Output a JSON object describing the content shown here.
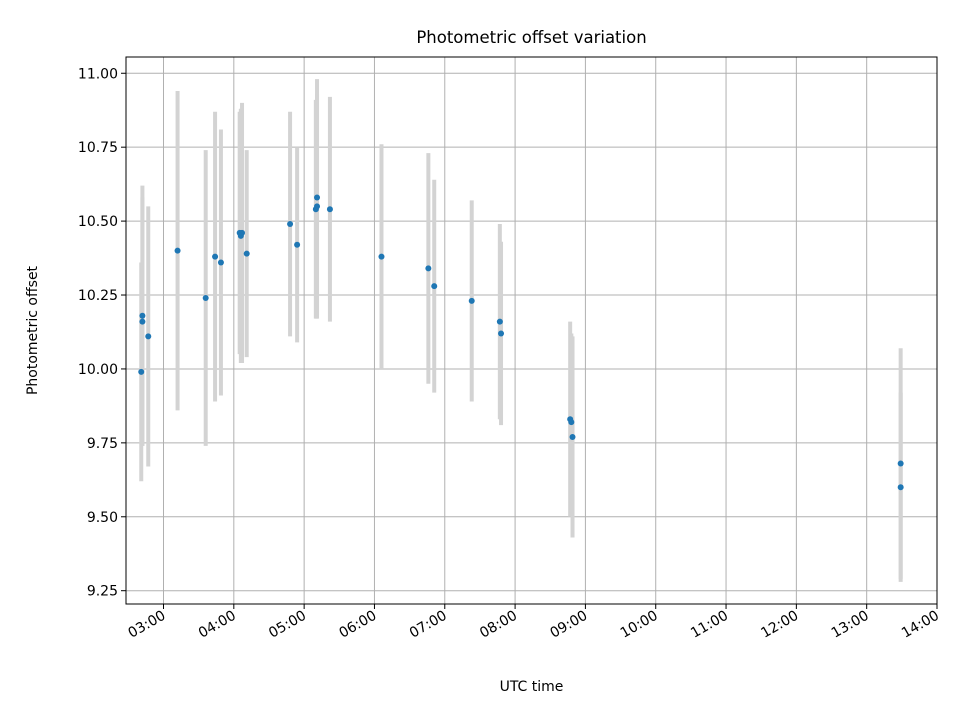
{
  "chart_data": {
    "type": "scatter",
    "title": "Photometric offset variation",
    "xlabel": "UTC time",
    "ylabel": "Photometric offset",
    "xlim": [
      "02:28",
      "14:00"
    ],
    "ylim": [
      9.205,
      11.055
    ],
    "grid": true,
    "x_ticks": [
      "03:00",
      "04:00",
      "05:00",
      "06:00",
      "07:00",
      "08:00",
      "09:00",
      "10:00",
      "11:00",
      "12:00",
      "13:00",
      "14:00"
    ],
    "y_ticks": [
      "9.25",
      "9.50",
      "9.75",
      "10.00",
      "10.25",
      "10.50",
      "10.75",
      "11.00"
    ],
    "series": [
      {
        "marker_color": "#1f77b4",
        "errorbar_color": "#d3d3d3",
        "points": [
          {
            "x": "02:41",
            "y": 9.99,
            "err": 0.37
          },
          {
            "x": "02:42",
            "y": 10.18,
            "err": 0.44
          },
          {
            "x": "02:42",
            "y": 10.16,
            "err": 0.42
          },
          {
            "x": "02:47",
            "y": 10.11,
            "err": 0.44
          },
          {
            "x": "03:12",
            "y": 10.4,
            "err": 0.54
          },
          {
            "x": "03:36",
            "y": 10.24,
            "err": 0.5
          },
          {
            "x": "03:44",
            "y": 10.38,
            "err": 0.49
          },
          {
            "x": "03:49",
            "y": 10.36,
            "err": 0.45
          },
          {
            "x": "04:05",
            "y": 10.46,
            "err": 0.41
          },
          {
            "x": "04:06",
            "y": 10.45,
            "err": 0.43
          },
          {
            "x": "04:07",
            "y": 10.46,
            "err": 0.44
          },
          {
            "x": "04:11",
            "y": 10.39,
            "err": 0.35
          },
          {
            "x": "04:48",
            "y": 10.49,
            "err": 0.38
          },
          {
            "x": "04:54",
            "y": 10.42,
            "err": 0.33
          },
          {
            "x": "05:10",
            "y": 10.54,
            "err": 0.37
          },
          {
            "x": "05:11",
            "y": 10.58,
            "err": 0.4
          },
          {
            "x": "05:11",
            "y": 10.55,
            "err": 0.38
          },
          {
            "x": "05:22",
            "y": 10.54,
            "err": 0.38
          },
          {
            "x": "06:06",
            "y": 10.38,
            "err": 0.38
          },
          {
            "x": "06:46",
            "y": 10.34,
            "err": 0.39
          },
          {
            "x": "06:51",
            "y": 10.28,
            "err": 0.36
          },
          {
            "x": "07:23",
            "y": 10.23,
            "err": 0.34
          },
          {
            "x": "07:47",
            "y": 10.16,
            "err": 0.33
          },
          {
            "x": "07:48",
            "y": 10.12,
            "err": 0.31
          },
          {
            "x": "08:47",
            "y": 9.83,
            "err": 0.33
          },
          {
            "x": "08:48",
            "y": 9.82,
            "err": 0.3
          },
          {
            "x": "08:49",
            "y": 9.77,
            "err": 0.34
          },
          {
            "x": "13:29",
            "y": 9.68,
            "err": 0.39
          },
          {
            "x": "13:29",
            "y": 9.6,
            "err": 0.32
          }
        ]
      }
    ]
  }
}
